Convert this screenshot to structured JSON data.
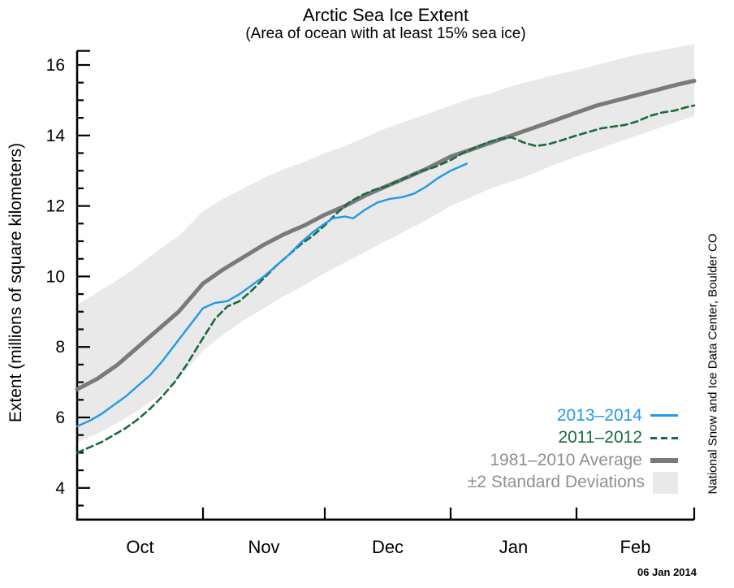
{
  "title": "Arctic Sea Ice Extent",
  "subtitle": "(Area of ocean with at least 15% sea ice)",
  "y_axis_label": "Extent (millions of square kilometers)",
  "attribution": "National Snow and Ice Data Center, Boulder CO",
  "date_stamp": "06 Jan 2014",
  "colors": {
    "season_current": "#2299E8",
    "season_previous": "#186B3C",
    "average_line": "#7A7A7A",
    "band_fill": "#E9E9E9",
    "legend_gray_text": "#8F8F8F",
    "axis": "#000000"
  },
  "legend": {
    "items": [
      {
        "label": "2013–2014",
        "label_color": "#2299E8",
        "swatch": "line",
        "swatch_color": "#2299E8"
      },
      {
        "label": "2011–2012",
        "label_color": "#186B3C",
        "swatch": "dashed-line",
        "swatch_color": "#186B3C"
      },
      {
        "label": "1981–2010 Average",
        "label_color": "#8F8F8F",
        "swatch": "thick-line",
        "swatch_color": "#7A7A7A"
      },
      {
        "label": "±2 Standard Deviations",
        "label_color": "#8F8F8F",
        "swatch": "box",
        "swatch_color": "#E9E9E9"
      }
    ]
  },
  "chart_data": {
    "type": "line",
    "title": "Arctic Sea Ice Extent",
    "subtitle": "(Area of ocean with at least 15% sea ice)",
    "ylabel": "Extent (millions of square kilometers)",
    "x_unit": "days since Oct 1",
    "x_axis": {
      "range": [
        0,
        152
      ],
      "month_labels": [
        {
          "label": "Oct",
          "center_day": 15.5
        },
        {
          "label": "Nov",
          "center_day": 46
        },
        {
          "label": "Dec",
          "center_day": 76.5
        },
        {
          "label": "Jan",
          "center_day": 107.5
        },
        {
          "label": "Feb",
          "center_day": 137.5
        }
      ],
      "month_tick_days": [
        31,
        61,
        92,
        123
      ],
      "end_tick_day": 152
    },
    "y_axis": {
      "range": [
        3.1,
        16.4
      ],
      "major_ticks": [
        4,
        6,
        8,
        10,
        12,
        14,
        16
      ],
      "minor_tick_step": 0.5
    },
    "band": {
      "name": "±2 Standard Deviations",
      "fill": "#E9E9E9",
      "upper": [
        [
          0,
          9.2
        ],
        [
          5,
          9.55
        ],
        [
          10,
          9.9
        ],
        [
          15,
          10.3
        ],
        [
          20,
          10.75
        ],
        [
          25,
          11.15
        ],
        [
          31,
          11.85
        ],
        [
          36,
          12.2
        ],
        [
          41,
          12.5
        ],
        [
          46,
          12.8
        ],
        [
          51,
          13.05
        ],
        [
          56,
          13.25
        ],
        [
          61,
          13.5
        ],
        [
          66,
          13.7
        ],
        [
          71,
          13.95
        ],
        [
          76,
          14.2
        ],
        [
          81,
          14.4
        ],
        [
          86,
          14.6
        ],
        [
          92,
          14.85
        ],
        [
          97,
          15.05
        ],
        [
          102,
          15.2
        ],
        [
          107,
          15.4
        ],
        [
          112,
          15.55
        ],
        [
          117,
          15.7
        ],
        [
          123,
          15.85
        ],
        [
          128,
          16.0
        ],
        [
          133,
          16.15
        ],
        [
          138,
          16.3
        ],
        [
          143,
          16.4
        ],
        [
          148,
          16.5
        ],
        [
          152,
          16.6
        ]
      ],
      "lower": [
        [
          0,
          5.3
        ],
        [
          5,
          5.55
        ],
        [
          10,
          5.85
        ],
        [
          15,
          6.2
        ],
        [
          20,
          6.6
        ],
        [
          25,
          7.1
        ],
        [
          31,
          7.9
        ],
        [
          36,
          8.35
        ],
        [
          41,
          8.75
        ],
        [
          46,
          9.1
        ],
        [
          51,
          9.45
        ],
        [
          56,
          9.75
        ],
        [
          61,
          10.1
        ],
        [
          66,
          10.4
        ],
        [
          71,
          10.7
        ],
        [
          76,
          11.0
        ],
        [
          81,
          11.3
        ],
        [
          86,
          11.6
        ],
        [
          92,
          12.0
        ],
        [
          97,
          12.25
        ],
        [
          102,
          12.5
        ],
        [
          107,
          12.7
        ],
        [
          112,
          12.9
        ],
        [
          117,
          13.15
        ],
        [
          123,
          13.4
        ],
        [
          128,
          13.6
        ],
        [
          133,
          13.8
        ],
        [
          138,
          14.0
        ],
        [
          143,
          14.2
        ],
        [
          148,
          14.4
        ],
        [
          152,
          14.55
        ]
      ]
    },
    "series": [
      {
        "name": "1981–2010 Average",
        "color": "#7A7A7A",
        "stroke_width": 5,
        "dash": null,
        "points": [
          [
            0,
            6.8
          ],
          [
            5,
            7.1
          ],
          [
            10,
            7.5
          ],
          [
            15,
            8.0
          ],
          [
            20,
            8.5
          ],
          [
            25,
            9.0
          ],
          [
            31,
            9.8
          ],
          [
            36,
            10.2
          ],
          [
            41,
            10.55
          ],
          [
            46,
            10.9
          ],
          [
            51,
            11.2
          ],
          [
            56,
            11.45
          ],
          [
            61,
            11.75
          ],
          [
            66,
            12.0
          ],
          [
            71,
            12.3
          ],
          [
            76,
            12.55
          ],
          [
            81,
            12.8
          ],
          [
            86,
            13.05
          ],
          [
            92,
            13.4
          ],
          [
            97,
            13.6
          ],
          [
            102,
            13.8
          ],
          [
            107,
            14.0
          ],
          [
            112,
            14.2
          ],
          [
            117,
            14.4
          ],
          [
            123,
            14.65
          ],
          [
            128,
            14.85
          ],
          [
            133,
            15.0
          ],
          [
            138,
            15.15
          ],
          [
            143,
            15.3
          ],
          [
            148,
            15.45
          ],
          [
            152,
            15.55
          ]
        ]
      },
      {
        "name": "2011–2012",
        "color": "#186B3C",
        "stroke_width": 2.6,
        "dash": "8 5",
        "points": [
          [
            0,
            5.0
          ],
          [
            3,
            5.15
          ],
          [
            6,
            5.3
          ],
          [
            9,
            5.5
          ],
          [
            12,
            5.7
          ],
          [
            15,
            5.95
          ],
          [
            18,
            6.25
          ],
          [
            21,
            6.6
          ],
          [
            24,
            7.0
          ],
          [
            27,
            7.5
          ],
          [
            31,
            8.25
          ],
          [
            34,
            8.8
          ],
          [
            37,
            9.15
          ],
          [
            40,
            9.3
          ],
          [
            43,
            9.6
          ],
          [
            46,
            9.95
          ],
          [
            49,
            10.3
          ],
          [
            52,
            10.6
          ],
          [
            55,
            10.9
          ],
          [
            58,
            11.15
          ],
          [
            61,
            11.45
          ],
          [
            64,
            11.8
          ],
          [
            67,
            12.1
          ],
          [
            70,
            12.3
          ],
          [
            73,
            12.45
          ],
          [
            76,
            12.55
          ],
          [
            79,
            12.7
          ],
          [
            82,
            12.85
          ],
          [
            85,
            13.0
          ],
          [
            88,
            13.1
          ],
          [
            92,
            13.3
          ],
          [
            95,
            13.5
          ],
          [
            98,
            13.65
          ],
          [
            101,
            13.8
          ],
          [
            104,
            13.9
          ],
          [
            107,
            13.95
          ],
          [
            110,
            13.8
          ],
          [
            113,
            13.7
          ],
          [
            116,
            13.75
          ],
          [
            119,
            13.85
          ],
          [
            123,
            14.0
          ],
          [
            126,
            14.1
          ],
          [
            129,
            14.2
          ],
          [
            132,
            14.25
          ],
          [
            135,
            14.3
          ],
          [
            138,
            14.4
          ],
          [
            141,
            14.55
          ],
          [
            144,
            14.65
          ],
          [
            147,
            14.7
          ],
          [
            150,
            14.8
          ],
          [
            152,
            14.85
          ]
        ]
      },
      {
        "name": "2013–2014",
        "color": "#2299E8",
        "stroke_width": 2.4,
        "dash": null,
        "points": [
          [
            0,
            5.75
          ],
          [
            3,
            5.9
          ],
          [
            6,
            6.1
          ],
          [
            9,
            6.35
          ],
          [
            12,
            6.6
          ],
          [
            15,
            6.9
          ],
          [
            18,
            7.2
          ],
          [
            21,
            7.6
          ],
          [
            24,
            8.05
          ],
          [
            27,
            8.5
          ],
          [
            31,
            9.1
          ],
          [
            34,
            9.25
          ],
          [
            37,
            9.3
          ],
          [
            40,
            9.5
          ],
          [
            43,
            9.75
          ],
          [
            46,
            10.0
          ],
          [
            49,
            10.3
          ],
          [
            52,
            10.6
          ],
          [
            55,
            10.95
          ],
          [
            58,
            11.25
          ],
          [
            61,
            11.5
          ],
          [
            63,
            11.65
          ],
          [
            66,
            11.7
          ],
          [
            68,
            11.65
          ],
          [
            71,
            11.9
          ],
          [
            74,
            12.1
          ],
          [
            77,
            12.2
          ],
          [
            80,
            12.25
          ],
          [
            83,
            12.35
          ],
          [
            86,
            12.55
          ],
          [
            89,
            12.8
          ],
          [
            92,
            13.0
          ],
          [
            94,
            13.1
          ],
          [
            96,
            13.2
          ]
        ]
      }
    ]
  }
}
